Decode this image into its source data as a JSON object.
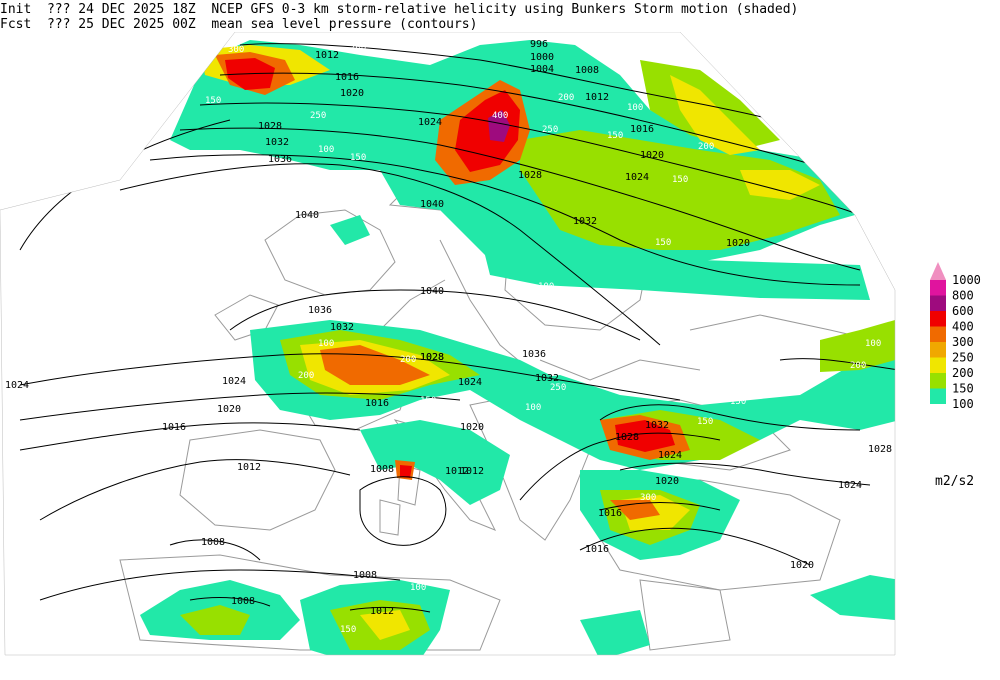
{
  "header": {
    "init_label": "Init",
    "init_time": "??? 24 DEC 2025 18Z",
    "fcst_label": "Fcst",
    "fcst_time": "??? 25 DEC 2025 00Z",
    "shaded_title": "NCEP GFS 0-3 km storm-relative helicity using Bunkers Storm motion (shaded)",
    "contour_title": "mean sea level pressure (contours)"
  },
  "colorbar": {
    "units": "m2/s2",
    "levels": [
      {
        "value": "1000",
        "color": "#f08fc0"
      },
      {
        "value": "800",
        "color": "#e0149e"
      },
      {
        "value": "600",
        "color": "#9e0b7e"
      },
      {
        "value": "400",
        "color": "#f00000"
      },
      {
        "value": "300",
        "color": "#f06a00"
      },
      {
        "value": "250",
        "color": "#f0a800"
      },
      {
        "value": "200",
        "color": "#f0e600"
      },
      {
        "value": "150",
        "color": "#98e000"
      },
      {
        "value": "100",
        "color": "#22e8a8"
      }
    ]
  },
  "isobar_labels": [
    "996",
    "1000",
    "1004",
    "1008",
    "1012",
    "1012",
    "1016",
    "1016",
    "1020",
    "1020",
    "1024",
    "1024",
    "1028",
    "1028",
    "1032",
    "1032",
    "1036",
    "1040",
    "1040",
    "1040",
    "1036",
    "1032",
    "1028",
    "1024",
    "1020",
    "1016",
    "1012",
    "1008",
    "1008",
    "1008",
    "1008",
    "1012",
    "1016",
    "1020",
    "1024",
    "1028",
    "1032",
    "1036",
    "1024",
    "1020",
    "1016",
    "1012",
    "1028",
    "1032",
    "1024",
    "1020",
    "1016",
    "1012",
    "1028",
    "1024",
    "1020"
  ],
  "helicity_labels": [
    "300",
    "200",
    "250",
    "150",
    "100",
    "200",
    "400",
    "250",
    "150",
    "100",
    "150",
    "200",
    "150",
    "100",
    "150",
    "100",
    "150",
    "200",
    "200",
    "150",
    "100",
    "250",
    "150",
    "100",
    "300",
    "200",
    "150",
    "100",
    "200",
    "150"
  ]
}
